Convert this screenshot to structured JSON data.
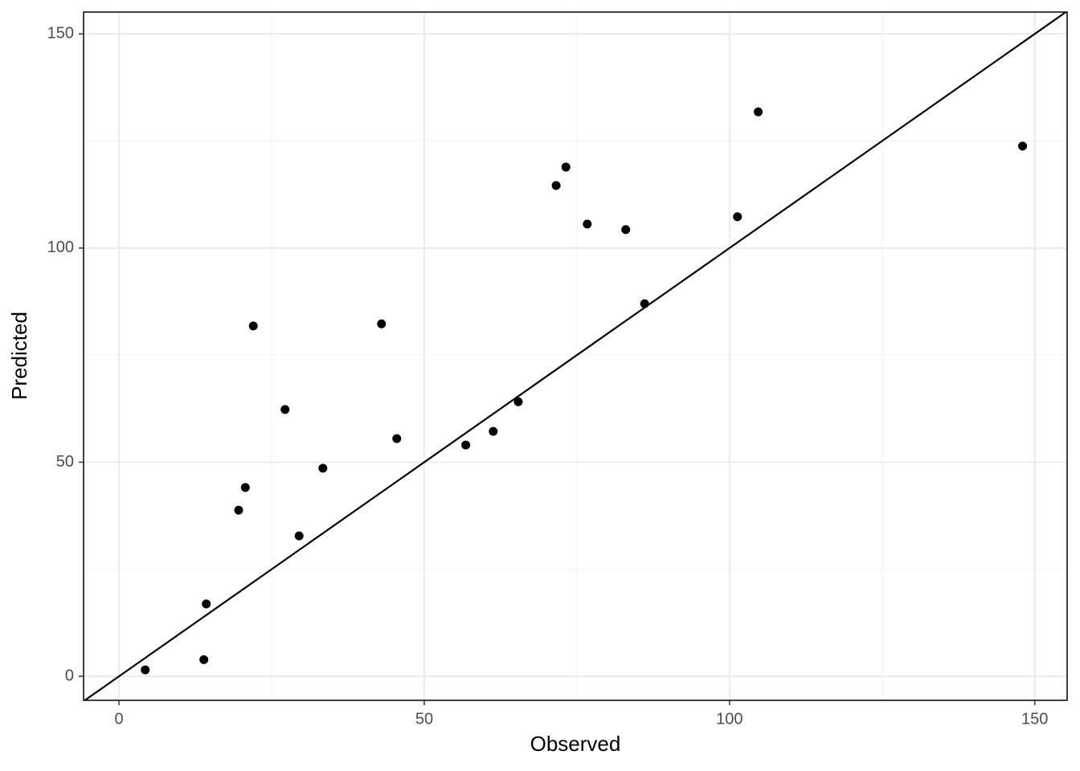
{
  "chart_data": {
    "type": "scatter",
    "x_label": "Observed",
    "y_label": "Predicted",
    "x": [
      4.3,
      13.9,
      14.3,
      19.6,
      20.7,
      22.0,
      27.2,
      29.5,
      33.4,
      43.0,
      45.5,
      56.8,
      61.3,
      65.4,
      71.6,
      73.2,
      76.7,
      83.0,
      86.1,
      101.3,
      104.7,
      148.0
    ],
    "values": [
      1.5,
      3.9,
      16.9,
      38.8,
      44.1,
      81.8,
      62.3,
      32.8,
      48.6,
      82.3,
      55.5,
      54.0,
      57.2,
      64.1,
      114.6,
      118.9,
      105.6,
      104.3,
      87.0,
      107.3,
      131.8,
      123.8
    ],
    "color": "#000000",
    "reference_line": {
      "slope": 1,
      "intercept": 0,
      "color": "#000000"
    },
    "xlim": [
      -5.8,
      155.3
    ],
    "ylim": [
      -5.6,
      155.1
    ],
    "xticks": [
      0,
      50,
      100,
      150
    ],
    "yticks": [
      0,
      50,
      100,
      150
    ],
    "xminor": [
      25,
      75,
      125
    ],
    "yminor": [
      25,
      75,
      125
    ],
    "grid": true
  }
}
